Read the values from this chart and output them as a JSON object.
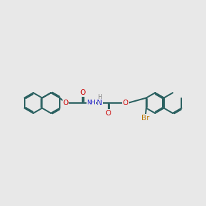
{
  "bg": "#e8e8e8",
  "bc": "#2a6060",
  "blw": 1.5,
  "dbo": 0.05,
  "Oc": "#cc0000",
  "Nc": "#2222cc",
  "Brc": "#bb7700",
  "Hc": "#888888",
  "fs": 7.5,
  "r": 0.5,
  "xlim": [
    0.0,
    10.0
  ],
  "ylim": [
    2.5,
    7.5
  ]
}
